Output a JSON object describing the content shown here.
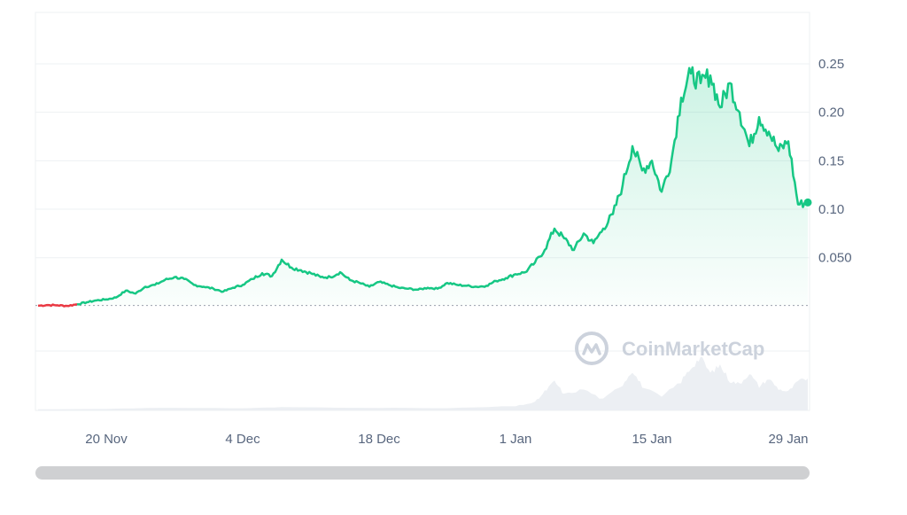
{
  "watermark": "CoinMarketCap",
  "colors": {
    "up": "#16c784",
    "down": "#ea3943",
    "volume": "#eceff3",
    "grid": "#eef0f3",
    "baseline": "#9aa1ac",
    "axis_text": "#58667e"
  },
  "chart_data": {
    "type": "area",
    "title": "",
    "xlabel": "",
    "ylabel": "",
    "ylim": [
      -0.0115,
      0.2975
    ],
    "y_ticks": [
      "0.050",
      "0.10",
      "0.15",
      "0.20",
      "0.25"
    ],
    "y_tick_values": [
      0.05,
      0.1,
      0.15,
      0.2,
      0.25
    ],
    "x_ticks": [
      "20 Nov",
      "4 Dec",
      "18 Dec",
      "1 Jan",
      "15 Jan",
      "29 Jan"
    ],
    "x_tick_dates": [
      "2023-11-20",
      "2023-12-04",
      "2023-12-18",
      "2024-01-01",
      "2024-01-15",
      "2024-01-29"
    ],
    "x_range": [
      "2023-11-13",
      "2024-01-31"
    ],
    "baseline_price": 0.0007,
    "series": [
      {
        "values_by_date": [
          [
            "2023-11-13",
            0.0005
          ],
          [
            "2023-11-14",
            0.0012
          ],
          [
            "2023-11-15",
            0.0009
          ],
          [
            "2023-11-16",
            0.0003
          ],
          [
            "2023-11-17",
            0.002
          ],
          [
            "2023-11-18",
            0.004
          ],
          [
            "2023-11-19",
            0.006
          ],
          [
            "2023-11-20",
            0.007
          ],
          [
            "2023-11-21",
            0.009
          ],
          [
            "2023-11-22",
            0.016
          ],
          [
            "2023-11-23",
            0.013
          ],
          [
            "2023-11-24",
            0.02
          ],
          [
            "2023-11-25",
            0.022
          ],
          [
            "2023-11-26",
            0.027
          ],
          [
            "2023-11-27",
            0.03
          ],
          [
            "2023-11-28",
            0.028
          ],
          [
            "2023-11-29",
            0.022
          ],
          [
            "2023-11-30",
            0.02
          ],
          [
            "2023-12-01",
            0.018
          ],
          [
            "2023-12-02",
            0.015
          ],
          [
            "2023-12-03",
            0.019
          ],
          [
            "2023-12-04",
            0.022
          ],
          [
            "2023-12-05",
            0.028
          ],
          [
            "2023-12-06",
            0.034
          ],
          [
            "2023-12-07",
            0.031
          ],
          [
            "2023-12-08",
            0.048
          ],
          [
            "2023-12-09",
            0.04
          ],
          [
            "2023-12-10",
            0.037
          ],
          [
            "2023-12-11",
            0.034
          ],
          [
            "2023-12-12",
            0.03
          ],
          [
            "2023-12-13",
            0.03
          ],
          [
            "2023-12-14",
            0.035
          ],
          [
            "2023-12-15",
            0.027
          ],
          [
            "2023-12-16",
            0.024
          ],
          [
            "2023-12-17",
            0.02
          ],
          [
            "2023-12-18",
            0.025
          ],
          [
            "2023-12-19",
            0.022
          ],
          [
            "2023-12-20",
            0.019
          ],
          [
            "2023-12-21",
            0.018
          ],
          [
            "2023-12-22",
            0.017
          ],
          [
            "2023-12-23",
            0.019
          ],
          [
            "2023-12-24",
            0.018
          ],
          [
            "2023-12-25",
            0.024
          ],
          [
            "2023-12-26",
            0.022
          ],
          [
            "2023-12-27",
            0.021
          ],
          [
            "2023-12-28",
            0.02
          ],
          [
            "2023-12-29",
            0.021
          ],
          [
            "2023-12-30",
            0.026
          ],
          [
            "2023-12-31",
            0.029
          ],
          [
            "2024-01-01",
            0.033
          ],
          [
            "2024-01-02",
            0.035
          ],
          [
            "2024-01-03",
            0.045
          ],
          [
            "2024-01-04",
            0.058
          ],
          [
            "2024-01-05",
            0.08
          ],
          [
            "2024-01-06",
            0.07
          ],
          [
            "2024-01-07",
            0.058
          ],
          [
            "2024-01-08",
            0.075
          ],
          [
            "2024-01-09",
            0.065
          ],
          [
            "2024-01-10",
            0.08
          ],
          [
            "2024-01-11",
            0.095
          ],
          [
            "2024-01-12",
            0.125
          ],
          [
            "2024-01-13",
            0.165
          ],
          [
            "2024-01-14",
            0.14
          ],
          [
            "2024-01-15",
            0.15
          ],
          [
            "2024-01-16",
            0.118
          ],
          [
            "2024-01-17",
            0.15
          ],
          [
            "2024-01-18",
            0.215
          ],
          [
            "2024-01-19",
            0.24
          ],
          [
            "2024-01-20",
            0.23
          ],
          [
            "2024-01-21",
            0.238
          ],
          [
            "2024-01-22",
            0.205
          ],
          [
            "2024-01-23",
            0.23
          ],
          [
            "2024-01-24",
            0.2
          ],
          [
            "2024-01-25",
            0.165
          ],
          [
            "2024-01-26",
            0.195
          ],
          [
            "2024-01-27",
            0.18
          ],
          [
            "2024-01-28",
            0.16
          ],
          [
            "2024-01-29",
            0.17
          ],
          [
            "2024-01-30",
            0.105
          ],
          [
            "2024-01-31",
            0.107
          ]
        ],
        "color": "#16c784"
      }
    ],
    "volume_relative": [
      [
        "2023-11-13",
        0.02
      ],
      [
        "2023-11-20",
        0.03
      ],
      [
        "2023-11-27",
        0.05
      ],
      [
        "2023-12-04",
        0.04
      ],
      [
        "2023-12-08",
        0.06
      ],
      [
        "2023-12-18",
        0.05
      ],
      [
        "2023-12-25",
        0.04
      ],
      [
        "2024-01-01",
        0.08
      ],
      [
        "2024-01-03",
        0.15
      ],
      [
        "2024-01-04",
        0.35
      ],
      [
        "2024-01-05",
        0.55
      ],
      [
        "2024-01-06",
        0.3
      ],
      [
        "2024-01-08",
        0.4
      ],
      [
        "2024-01-10",
        0.2
      ],
      [
        "2024-01-12",
        0.5
      ],
      [
        "2024-01-13",
        0.75
      ],
      [
        "2024-01-14",
        0.45
      ],
      [
        "2024-01-16",
        0.25
      ],
      [
        "2024-01-18",
        0.55
      ],
      [
        "2024-01-19",
        0.8
      ],
      [
        "2024-01-20",
        1.0
      ],
      [
        "2024-01-21",
        0.7
      ],
      [
        "2024-01-22",
        0.85
      ],
      [
        "2024-01-23",
        0.55
      ],
      [
        "2024-01-24",
        0.5
      ],
      [
        "2024-01-25",
        0.7
      ],
      [
        "2024-01-26",
        0.45
      ],
      [
        "2024-01-27",
        0.6
      ],
      [
        "2024-01-28",
        0.4
      ],
      [
        "2024-01-29",
        0.35
      ],
      [
        "2024-01-30",
        0.55
      ],
      [
        "2024-01-31",
        0.6
      ]
    ],
    "grid": true,
    "y_axis_side": "right",
    "legend": "none"
  },
  "icons": {
    "watermark_logo": "coinmarketcap-logo-icon"
  }
}
